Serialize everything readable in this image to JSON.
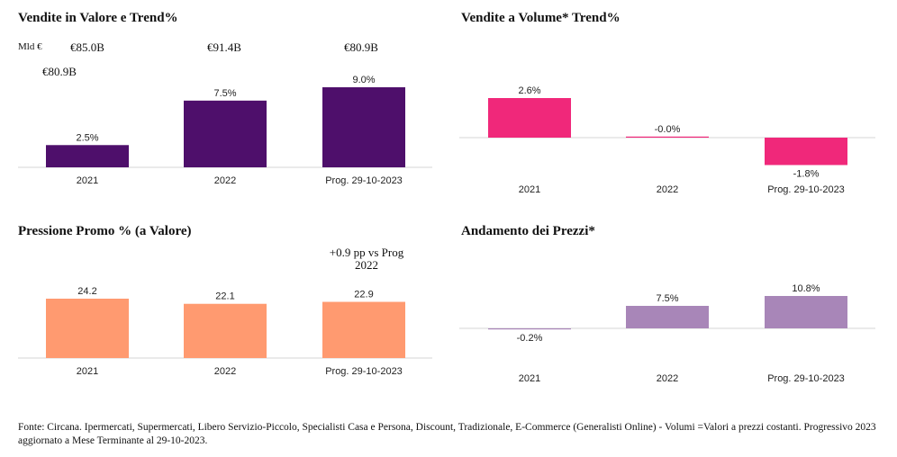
{
  "header_notes": {
    "unit": "Mld €",
    "totals": [
      "€85.0B",
      "€91.4B",
      "€80.9B"
    ],
    "prev_total": "€80.9B"
  },
  "panels": {
    "valore": {
      "title": "Vendite in Valore e Trend%"
    },
    "volume": {
      "title": "Vendite a Volume* Trend%"
    },
    "promo": {
      "title": "Pressione Promo % (a Valore)",
      "annotation": "+0.9 pp vs Prog 2022"
    },
    "prezzi": {
      "title": "Andamento dei Prezzi*"
    }
  },
  "chart_data": [
    {
      "id": "valore",
      "type": "bar",
      "title": "Vendite in Valore e Trend%",
      "categories": [
        "2021",
        "2022",
        "Prog. 29-10-2023"
      ],
      "values": [
        2.5,
        7.5,
        9.0
      ],
      "labels": [
        "2.5%",
        "7.5%",
        "9.0%"
      ],
      "color": "#4e0f6b",
      "ylim": [
        0,
        9.5
      ]
    },
    {
      "id": "volume",
      "type": "bar",
      "title": "Vendite a Volume* Trend%",
      "categories": [
        "2021",
        "2022",
        "Prog. 29-10-2023"
      ],
      "values": [
        2.6,
        -0.0,
        -1.8
      ],
      "labels": [
        "2.6%",
        "-0.0%",
        "-1.8%"
      ],
      "color": "#f0287a",
      "ylim": [
        -1.8,
        2.6
      ]
    },
    {
      "id": "promo",
      "type": "bar",
      "title": "Pressione Promo % (a Valore)",
      "categories": [
        "2021",
        "2022",
        "Prog. 29-10-2023"
      ],
      "values": [
        24.2,
        22.1,
        22.9
      ],
      "labels": [
        "24.2",
        "22.1",
        "22.9"
      ],
      "color": "#ff9a70",
      "ylim": [
        0,
        24.2
      ]
    },
    {
      "id": "prezzi",
      "type": "bar",
      "title": "Andamento dei Prezzi*",
      "categories": [
        "2021",
        "2022",
        "Prog. 29-10-2023"
      ],
      "values": [
        -0.2,
        7.5,
        10.8
      ],
      "labels": [
        "-0.2%",
        "7.5%",
        "10.8%"
      ],
      "color": "#a886b8",
      "ylim": [
        -0.2,
        10.8
      ]
    }
  ],
  "footer": "Fonte: Circana. Ipermercati, Supermercati, Libero Servizio-Piccolo, Specialisti Casa e Persona, Discount, Tradizionale, E-Commerce (Generalisti Online) - Volumi =Valori a prezzi costanti. Progressivo 2023 aggiornato a Mese Terminante al 29-10-2023."
}
